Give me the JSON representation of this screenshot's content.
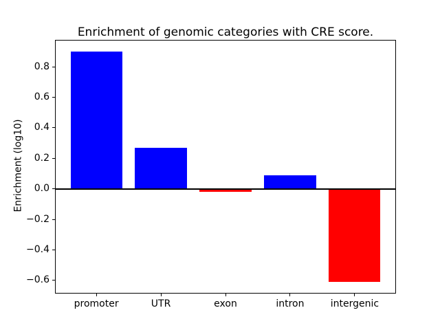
{
  "chart_data": {
    "type": "bar",
    "title": "Enrichment of genomic categories with CRE score.",
    "xlabel": "",
    "ylabel": "Enrichment (log10)",
    "categories": [
      "promoter",
      "UTR",
      "exon",
      "intron",
      "intergenic"
    ],
    "values": [
      0.9,
      0.27,
      -0.02,
      0.09,
      -0.61
    ],
    "yticks": [
      -0.6,
      -0.4,
      -0.2,
      0.0,
      0.2,
      0.4,
      0.6,
      0.8
    ],
    "ytick_labels": [
      "−0.6",
      "−0.4",
      "−0.2",
      "0.0",
      "0.2",
      "0.4",
      "0.6",
      "0.8"
    ],
    "ylim": [
      -0.686,
      0.976
    ],
    "xlim": [
      -0.64,
      4.64
    ],
    "bar_width": 0.8,
    "positive_color": "#0000ff",
    "negative_color": "#ff0000",
    "zero_line": true,
    "grid": false,
    "legend": "none"
  }
}
